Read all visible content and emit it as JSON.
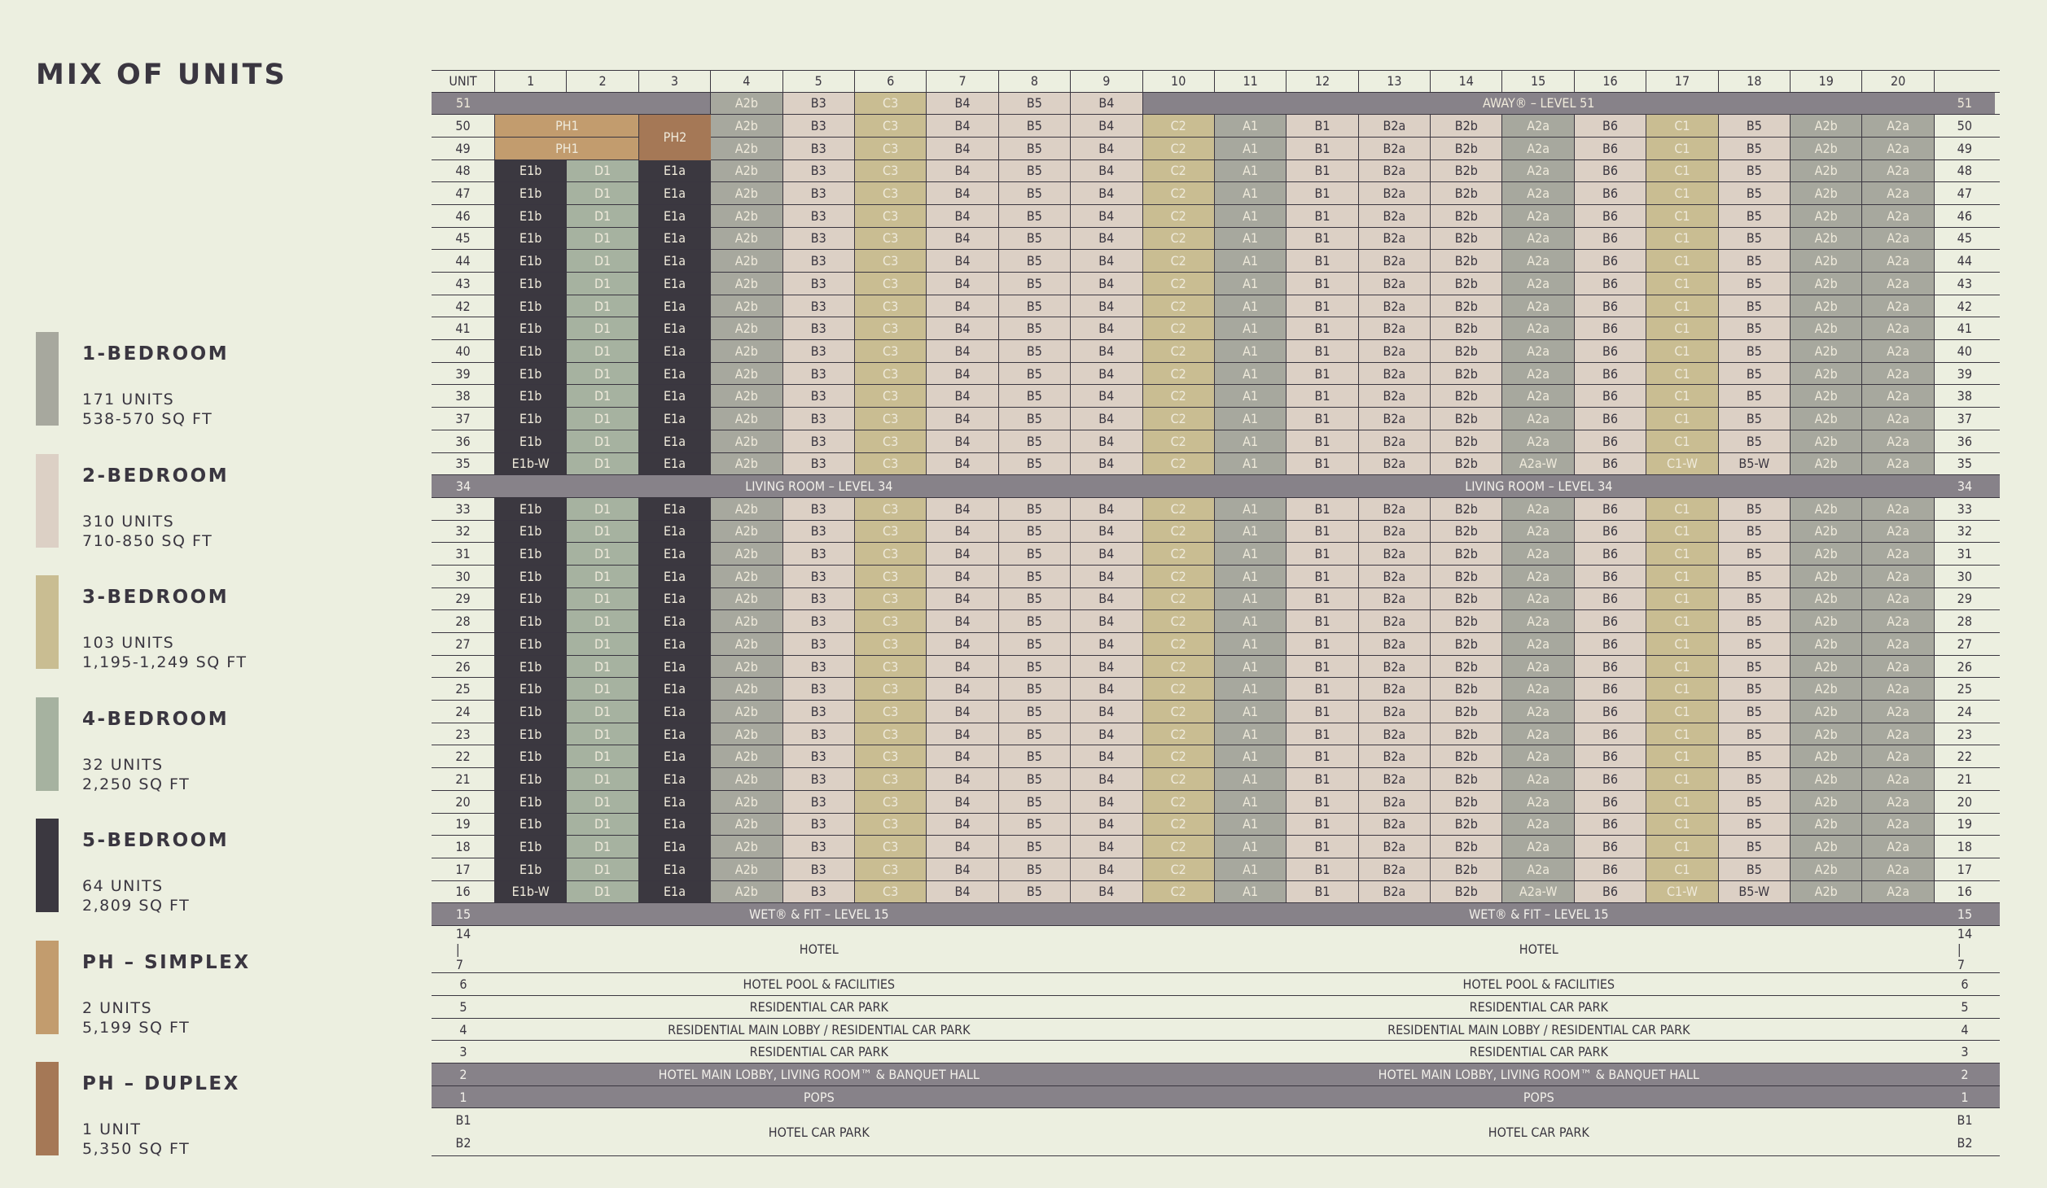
{
  "page": {
    "title": "MIX OF UNITS"
  },
  "colors": {
    "background": "#ecefe0",
    "text": "#3a3640",
    "band": "#878289",
    "A": "#a7a89e",
    "B": "#dcd0c5",
    "C": "#c9bd92",
    "D": "#a6b2a0",
    "E": "#3b3840",
    "PH1": "#c29c6e",
    "PH2": "#a57856"
  },
  "legend": [
    {
      "label": "1-BEDROOM",
      "units": "171 UNITS",
      "area": "538-570 SQ FT",
      "color": "#a7a89e"
    },
    {
      "label": "2-BEDROOM",
      "units": "310 UNITS",
      "area": "710-850 SQ FT",
      "color": "#dcd0c5"
    },
    {
      "label": "3-BEDROOM",
      "units": "103 UNITS",
      "area": "1,195-1,249 SQ FT",
      "color": "#c9bd92"
    },
    {
      "label": "4-BEDROOM",
      "units": "32 UNITS",
      "area": "2,250 SQ FT",
      "color": "#a6b2a0"
    },
    {
      "label": "5-BEDROOM",
      "units": "64 UNITS",
      "area": "2,809 SQ FT",
      "color": "#3b3840"
    },
    {
      "label": "PH – SIMPLEX",
      "units": "2 UNITS",
      "area": "5,199 SQ FT",
      "color": "#c29c6e"
    },
    {
      "label": "PH – DUPLEX",
      "units": "1 UNIT",
      "area": "5,350 SQ FT",
      "color": "#a57856"
    }
  ],
  "table": {
    "header": [
      "UNIT",
      "1",
      "2",
      "3",
      "4",
      "5",
      "6",
      "7",
      "8",
      "9",
      "10",
      "11",
      "12",
      "13",
      "14",
      "15",
      "16",
      "17",
      "18",
      "19",
      "20",
      ""
    ],
    "standard_row": [
      "E1b",
      "D1",
      "E1a",
      "A2b",
      "B3",
      "C3",
      "B4",
      "B5",
      "B4",
      "C2",
      "A1",
      "B1",
      "B2a",
      "B2b",
      "A2a",
      "B6",
      "C1",
      "B5",
      "A2b",
      "A2a"
    ],
    "w_row_35": [
      "E1b-W",
      "D1",
      "E1a",
      "A2b",
      "B3",
      "C3",
      "B4",
      "B5",
      "B4",
      "C2",
      "A1",
      "B1",
      "B2a",
      "B2b",
      "A2a-W",
      "B6",
      "C1-W",
      "B5-W",
      "A2b",
      "A2a"
    ],
    "w_row_16": [
      "E1b-W",
      "D1",
      "E1a",
      "A2b",
      "B3",
      "C3",
      "B4",
      "B5",
      "B4",
      "C2",
      "A1",
      "B1",
      "B2a",
      "B2b",
      "A2a-W",
      "B6",
      "C1-W",
      "B5-W",
      "A2b",
      "A2a"
    ],
    "level_51": {
      "level": "51",
      "units_4_to_9": [
        "A2b",
        "B3",
        "C3",
        "B4",
        "B5",
        "B4"
      ],
      "amenity": "AWAY® – LEVEL 51"
    },
    "level_50": {
      "level": "50",
      "ph1": "PH1",
      "ph2": "PH2",
      "units_4_to_20": [
        "A2b",
        "B3",
        "C3",
        "B4",
        "B5",
        "B4",
        "C2",
        "A1",
        "B1",
        "B2a",
        "B2b",
        "A2a",
        "B6",
        "C1",
        "B5",
        "A2b",
        "A2a"
      ]
    },
    "level_49": {
      "level": "49",
      "ph1": "PH1",
      "units_4_to_20": [
        "A2b",
        "B3",
        "C3",
        "B4",
        "B5",
        "B4",
        "C2",
        "A1",
        "B1",
        "B2a",
        "B2b",
        "A2a",
        "B6",
        "C1",
        "B5",
        "A2b",
        "A2a"
      ]
    },
    "upper_levels": [
      "48",
      "47",
      "46",
      "45",
      "44",
      "43",
      "42",
      "41",
      "40",
      "39",
      "38",
      "37",
      "36",
      "35"
    ],
    "level_34": {
      "level": "34",
      "left": "LIVING ROOM – LEVEL 34",
      "right": "LIVING ROOM – LEVEL 34"
    },
    "lower_levels": [
      "33",
      "32",
      "31",
      "30",
      "29",
      "28",
      "27",
      "26",
      "25",
      "24",
      "23",
      "22",
      "21",
      "20",
      "19",
      "18",
      "17",
      "16"
    ],
    "level_15": {
      "level": "15",
      "left": "WET® & FIT – LEVEL 15",
      "right": "WET® & FIT – LEVEL 15"
    },
    "podium": [
      {
        "levels": [
          "14",
          "|",
          "7"
        ],
        "left": "HOTEL",
        "right": "HOTEL",
        "band": false,
        "height": 2
      },
      {
        "levels": [
          "6"
        ],
        "left": "HOTEL POOL & FACILITIES",
        "right": "HOTEL POOL & FACILITIES",
        "band": false,
        "height": 1
      },
      {
        "levels": [
          "5"
        ],
        "left": "RESIDENTIAL CAR PARK",
        "right": "RESIDENTIAL CAR PARK",
        "band": false,
        "height": 1
      },
      {
        "levels": [
          "4"
        ],
        "left": "RESIDENTIAL MAIN LOBBY / RESIDENTIAL CAR PARK",
        "right": "RESIDENTIAL MAIN LOBBY / RESIDENTIAL CAR PARK",
        "band": false,
        "height": 1
      },
      {
        "levels": [
          "3"
        ],
        "left": "RESIDENTIAL CAR PARK",
        "right": "RESIDENTIAL CAR PARK",
        "band": false,
        "height": 1
      },
      {
        "levels": [
          "2"
        ],
        "left": "HOTEL MAIN LOBBY, LIVING ROOM™ & BANQUET HALL",
        "right": "HOTEL MAIN LOBBY, LIVING ROOM™ & BANQUET HALL",
        "band": true,
        "height": 1
      },
      {
        "levels": [
          "1"
        ],
        "left": "POPS",
        "right": "POPS",
        "band": true,
        "height": 1
      },
      {
        "levels": [
          "B1",
          "B2"
        ],
        "left": "HOTEL CAR PARK",
        "right": "HOTEL CAR PARK",
        "band": false,
        "height": 2
      }
    ]
  }
}
